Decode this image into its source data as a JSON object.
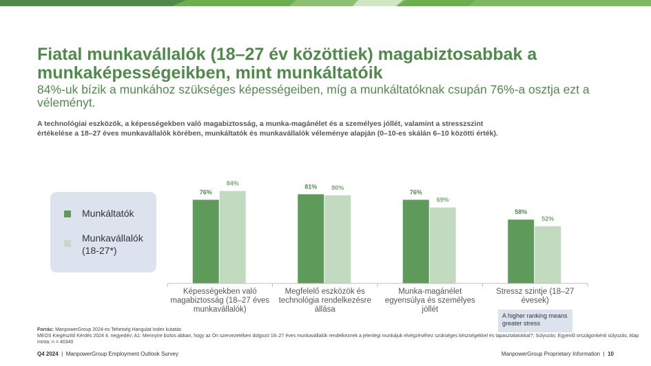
{
  "title": "Fiatal munkavállalók (18–27 év közöttiek) magabiztosabbak a munkaképességeikben, mint munkáltatóik",
  "subtitle": "84%-uk bízik a munkához szükséges képességeiben, míg a munkáltatóknak csupán 76%-a osztja ezt a véleményt.",
  "description": "A technológiai eszközök, a képességekben való magabiztosság, a munka-magánélet és a személyes jóllét, valamint a stresszszint értékelése a 18–27 éves munkavállalók körében, munkáltatók és munkavállalók véleménye alapján (0–10-es skálán 6–10 közötti érték).",
  "note": "A higher ranking means greater stress",
  "source": {
    "label": "Forrás:",
    "line1": "ManpowerGroup 2024-es Tehetség Hangulat Index kutatás",
    "line2": "MEOS Kiegészítő Kérdés 2024 4. negyedév; A1: Mennyire biztos abban, hogy az Ön szervezetében dolgozó 18–27 éves munkavállalók rendelkeznek a jelenlegi munkájuk elvégzéséhez szükséges készségekkel és tapasztalatokkal?; Súlyozás: Egyenlő országonkénti súlyozás; Alap minta: n = 40340"
  },
  "footer": {
    "quarter": "Q4 2024",
    "sep": "|",
    "survey": "ManpowerGroup Employment Outlook Survey",
    "proprietary": "ManpowerGroup Proprietary Information",
    "page": "10"
  },
  "colors": {
    "title": "#4f8a4a",
    "employers": "#5e9b5b",
    "employees": "#c2dbc0",
    "legend_bg": "#dde3ee",
    "axis": "#bfbfbf"
  },
  "chart_data": {
    "type": "bar",
    "categories": [
      "Képességekben való magabiztosság (18–27 éves munkavállalók)",
      "Megfelelő eszközök és technológia rendelkezésre állása",
      "Munka-magánélet egyensúlya és személyes jóllét",
      "Stressz szintje (18–27 évesek)"
    ],
    "series": [
      {
        "name": "Munkáltatók",
        "values": [
          76,
          81,
          76,
          58
        ],
        "labels": [
          "76%",
          "81%",
          "76%",
          "58%"
        ]
      },
      {
        "name": "Munkavállalók (18-27*)",
        "values": [
          84,
          80,
          69,
          52
        ],
        "labels": [
          "84%",
          "80%",
          "69%",
          "52%"
        ]
      }
    ],
    "ylim": [
      0,
      100
    ],
    "legend": "left",
    "grid": false
  }
}
